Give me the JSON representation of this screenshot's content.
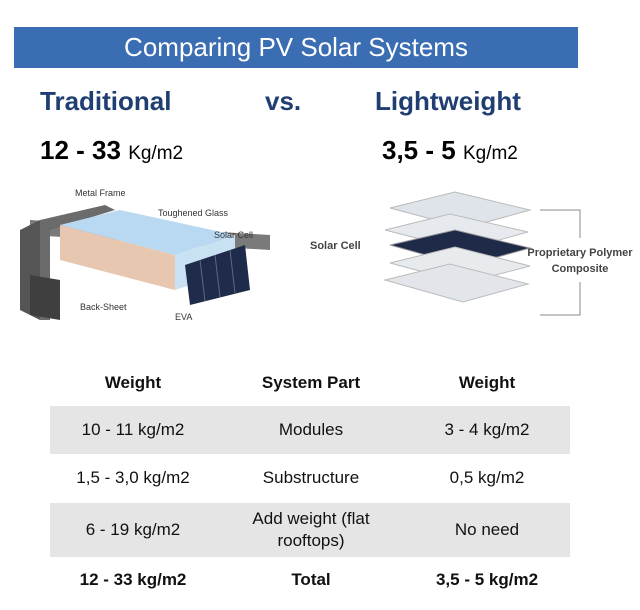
{
  "header": {
    "title": "Comparing PV Solar  Systems"
  },
  "headings": {
    "left": "Traditional",
    "vs": "vs.",
    "right": "Lightweight"
  },
  "weights": {
    "left": {
      "value": "12 - 33",
      "unit": "Kg/m2"
    },
    "right": {
      "value": "3,5 - 5",
      "unit": "Kg/m2"
    }
  },
  "diagram_left": {
    "labels": [
      "Metal Frame",
      "Toughened Glass",
      "Solar Cell",
      "Back-Sheet",
      "EVA"
    ]
  },
  "diagram_right": {
    "labels": [
      "Solar Cell",
      "Proprietary Polymer Composite"
    ]
  },
  "table": {
    "columns": [
      "Weight",
      "System Part",
      "Weight"
    ],
    "rows": [
      [
        "10 - 11 kg/m2",
        "Modules",
        "3 - 4 kg/m2"
      ],
      [
        "1,5 - 3,0 kg/m2",
        "Substructure",
        "0,5 kg/m2"
      ],
      [
        "6 - 19 kg/m2",
        "Add weight (flat rooftops)",
        "No need"
      ],
      [
        "12 - 33 kg/m2",
        "Total",
        "3,5 - 5 kg/m2"
      ]
    ]
  }
}
